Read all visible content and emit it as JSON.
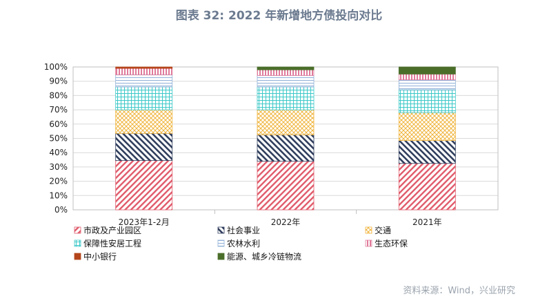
{
  "title": "图表 32: 2022 年新增地方债投向对比",
  "source": "资料来源：Wind，兴业研究",
  "chart_data": {
    "type": "bar",
    "stacked": true,
    "categories": [
      "2023年1-2月",
      "2022年",
      "2021年"
    ],
    "ylim": [
      0,
      100
    ],
    "yticks": [
      "0%",
      "10%",
      "20%",
      "30%",
      "40%",
      "50%",
      "60%",
      "70%",
      "80%",
      "90%",
      "100%"
    ],
    "grid": true,
    "legend_position": "bottom",
    "series": [
      {
        "name": "市政及产业园区",
        "values": [
          34.5,
          34.0,
          32.5
        ],
        "color": "#e05a6a",
        "pattern": "diag-red"
      },
      {
        "name": "社会事业",
        "values": [
          19.0,
          18.5,
          16.0
        ],
        "color": "#2f3d5c",
        "pattern": "diag-navy"
      },
      {
        "name": "交通",
        "values": [
          16.5,
          17.5,
          19.5
        ],
        "color": "#f0b43c",
        "pattern": "cross-yellow"
      },
      {
        "name": "保障性安居工程",
        "values": [
          16.0,
          16.0,
          16.0
        ],
        "color": "#3cc8c8",
        "pattern": "grid-cyan"
      },
      {
        "name": "农林水利",
        "values": [
          8.5,
          8.0,
          7.0
        ],
        "color": "#8fb0d8",
        "pattern": "hlines-blue"
      },
      {
        "name": "生态环保",
        "values": [
          4.5,
          4.0,
          4.0
        ],
        "color": "#e07a9a",
        "pattern": "vlines-pink"
      },
      {
        "name": "中小银行",
        "values": [
          1.0,
          0.0,
          0.0
        ],
        "color": "#b5451b",
        "pattern": "solid"
      },
      {
        "name": "能源、城乡冷链物流",
        "values": [
          0.0,
          2.0,
          5.0
        ],
        "color": "#4a6e2a",
        "pattern": "solid"
      }
    ]
  }
}
